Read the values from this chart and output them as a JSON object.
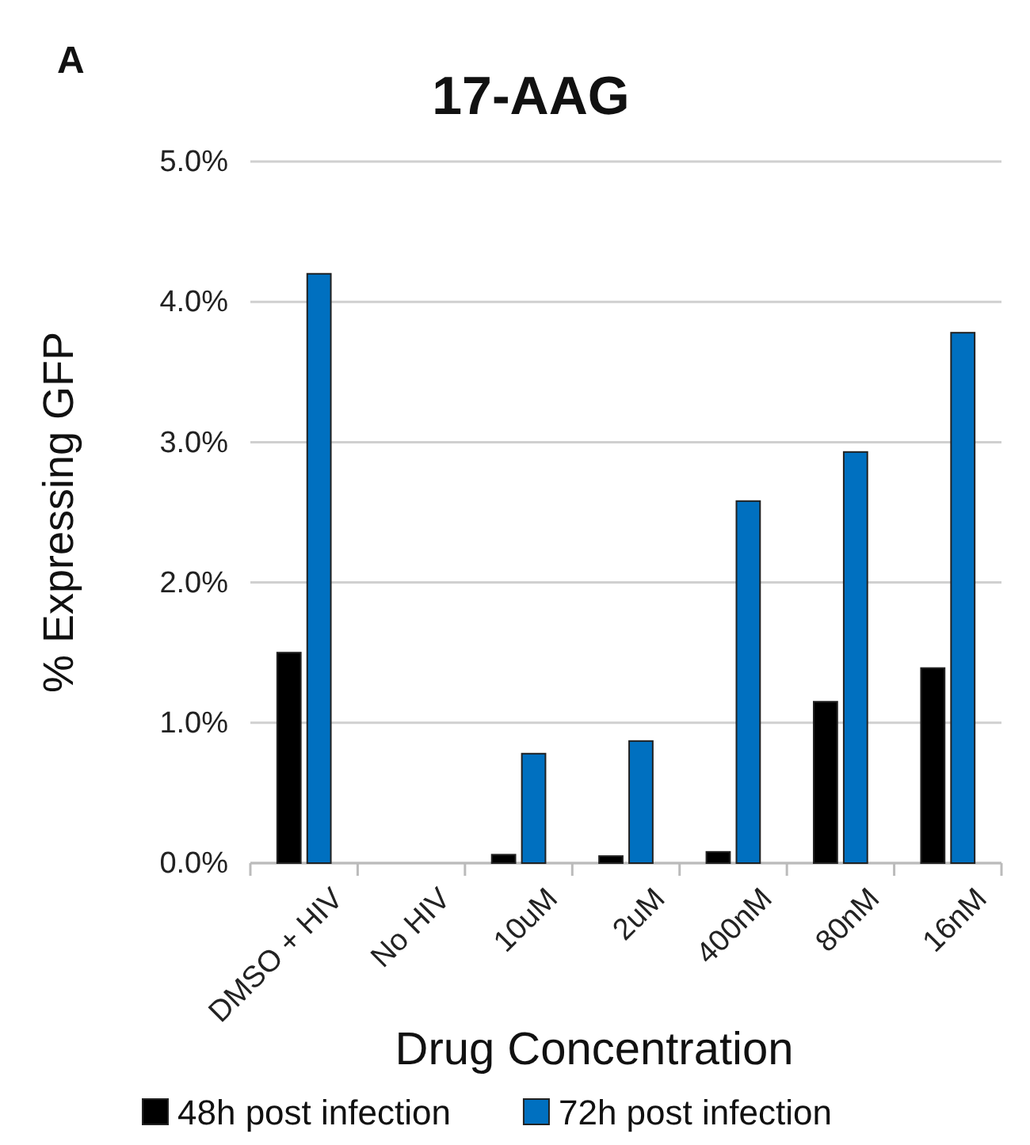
{
  "chart_data": {
    "type": "bar",
    "title": "17-AAG",
    "xlabel": "Drug Concentration",
    "ylabel": "% Expressing GFP",
    "annotations": [
      "A"
    ],
    "categories": [
      "DMSO + HIV",
      "No HIV",
      "10uM",
      "2uM",
      "400nM",
      "80nM",
      "16nM"
    ],
    "series": [
      {
        "name": "48h post infection",
        "color": "#000000",
        "values": [
          1.5,
          0,
          0.06,
          0.05,
          0.08,
          1.15,
          1.39
        ]
      },
      {
        "name": "72h post infection",
        "color": "#0070c0",
        "values": [
          4.2,
          0,
          0.78,
          0.87,
          2.58,
          2.93,
          3.78
        ]
      }
    ],
    "ylim": [
      0,
      5
    ],
    "yticks": [
      {
        "value": 0,
        "label": "0.0%"
      },
      {
        "value": 1,
        "label": "1.0%"
      },
      {
        "value": 2,
        "label": "2.0%"
      },
      {
        "value": 3,
        "label": "3.0%"
      },
      {
        "value": 4,
        "label": "4.0%"
      },
      {
        "value": 5,
        "label": "5.0%"
      }
    ],
    "grid": "y",
    "legend": "bottom"
  }
}
